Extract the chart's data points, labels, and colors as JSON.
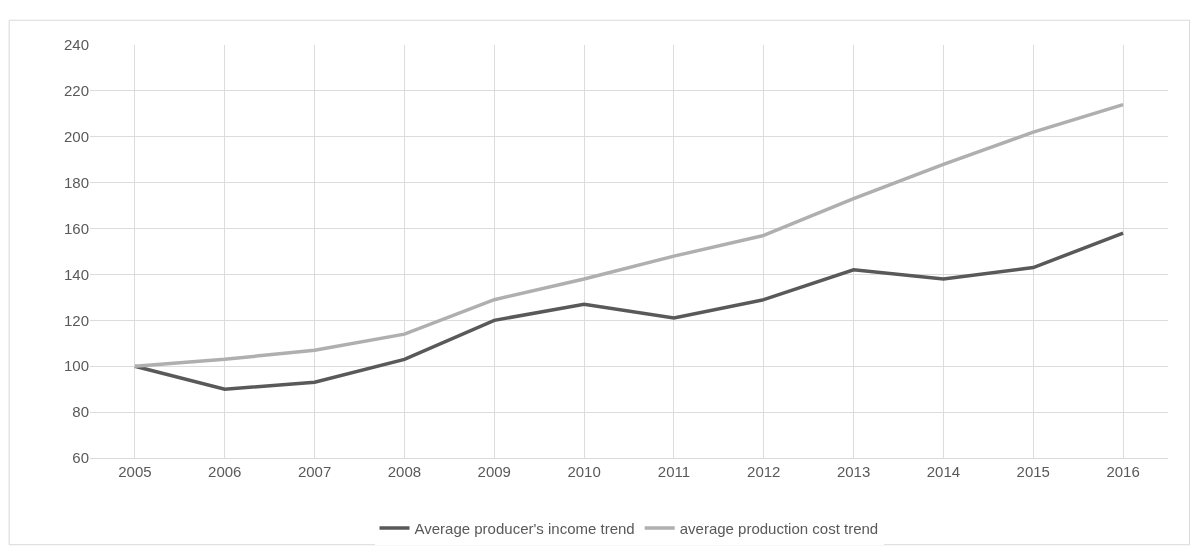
{
  "chart_data": {
    "type": "line",
    "categories": [
      "2005",
      "2006",
      "2007",
      "2008",
      "2009",
      "2010",
      "2011",
      "2012",
      "2013",
      "2014",
      "2015",
      "2016"
    ],
    "series": [
      {
        "name": "Average producer's income trend",
        "color": "#595959",
        "values": [
          100,
          90,
          93,
          103,
          120,
          127,
          121,
          129,
          142,
          138,
          143,
          158
        ]
      },
      {
        "name": "average production cost trend",
        "color": "#afafaf",
        "values": [
          100,
          103,
          107,
          114,
          129,
          138,
          148,
          157,
          173,
          188,
          202,
          214
        ]
      }
    ],
    "ylim": [
      60,
      240
    ],
    "yticks": [
      60,
      80,
      100,
      120,
      140,
      160,
      180,
      200,
      220,
      240
    ],
    "grid": true,
    "legend": "bottom",
    "marker": "none",
    "line_style": "solid"
  }
}
